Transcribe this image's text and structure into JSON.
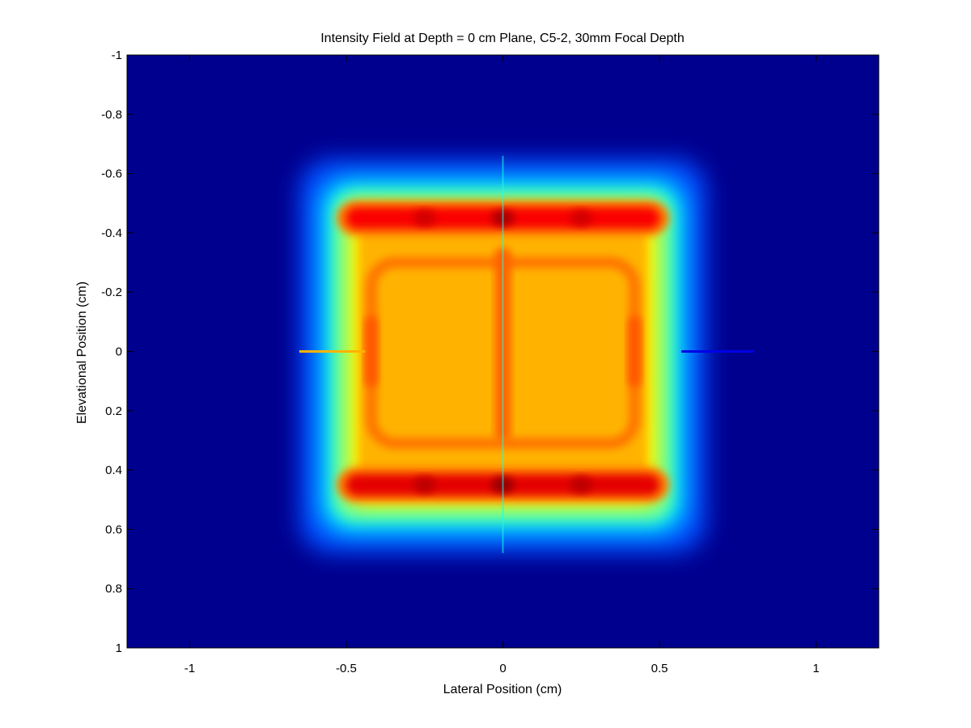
{
  "chart_data": {
    "type": "heatmap",
    "title": "Intensity Field at Depth = 0 cm Plane, C5-2, 30mm Focal Depth",
    "xlabel": "Lateral Position (cm)",
    "ylabel": "Elevational Position (cm)",
    "xlim": [
      -1.2,
      1.2
    ],
    "ylim": [
      -1,
      1
    ],
    "y_reversed": true,
    "grid": false,
    "colormap": "jet",
    "background_color": "#00008f",
    "x_ticks": [
      -1,
      -0.5,
      0,
      0.5,
      1
    ],
    "x_tick_labels": [
      "-1",
      "-0.5",
      "0",
      "0.5",
      "1"
    ],
    "y_ticks": [
      -1,
      -0.8,
      -0.6,
      -0.4,
      -0.2,
      0,
      0.2,
      0.4,
      0.6,
      0.8,
      1
    ],
    "y_tick_labels": [
      "-1",
      "-0.8",
      "-0.6",
      "-0.4",
      "-0.2",
      "0",
      "0.2",
      "0.4",
      "0.6",
      "0.8",
      "1"
    ],
    "field": {
      "region_x": [
        -0.55,
        0.55
      ],
      "region_y": [
        -0.55,
        0.58
      ],
      "high_bands": [
        {
          "x": [
            -0.5,
            0.5
          ],
          "y": -0.45,
          "level": 0.88
        },
        {
          "x": [
            -0.5,
            0.5
          ],
          "y": 0.45,
          "level": 0.9
        }
      ],
      "central_streak": {
        "x": 0,
        "y": [
          -0.35,
          0.3
        ],
        "level": 0.78
      },
      "horizontal_streak": {
        "y": 0,
        "x": [
          -0.65,
          0.8
        ]
      }
    }
  }
}
